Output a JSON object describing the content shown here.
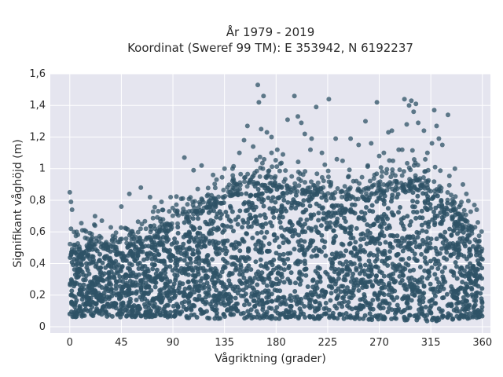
{
  "chart_data": {
    "type": "scatter",
    "title": "År 1979 - 2019",
    "subtitle": "Koordinat (Sweref 99 TM): E 353942, N 6192237",
    "xlabel": "Vågriktning (grader)",
    "ylabel": "Signifikant våghöjd (m)",
    "xlim": [
      -17,
      367
    ],
    "ylim": [
      -0.04,
      1.6
    ],
    "xticks": [
      0,
      45,
      90,
      135,
      180,
      225,
      270,
      315,
      360
    ],
    "xtick_labels": [
      "0",
      "45",
      "90",
      "135",
      "180",
      "225",
      "270",
      "315",
      "360"
    ],
    "yticks": [
      0,
      0.2,
      0.4,
      0.6,
      0.8,
      1.0,
      1.2,
      1.4,
      1.6
    ],
    "ytick_labels": [
      "0",
      "0,2",
      "0,4",
      "0,6",
      "0,8",
      "1",
      "1,2",
      "1,4",
      "1,6"
    ],
    "grid": true,
    "legend": "none",
    "colors": {
      "point": "#2e5266",
      "plot_bg": "#e5e5ef",
      "grid": "#ffffff"
    },
    "envelope": {
      "x": [
        0,
        20,
        45,
        70,
        90,
        110,
        135,
        160,
        180,
        200,
        225,
        250,
        270,
        290,
        300,
        315,
        330,
        345,
        360
      ],
      "lower": [
        0.06,
        0.06,
        0.06,
        0.06,
        0.06,
        0.05,
        0.05,
        0.05,
        0.05,
        0.05,
        0.05,
        0.05,
        0.04,
        0.04,
        0.04,
        0.03,
        0.04,
        0.05,
        0.06
      ],
      "dense_upper": [
        0.47,
        0.5,
        0.5,
        0.55,
        0.62,
        0.72,
        0.8,
        0.9,
        0.88,
        0.85,
        0.82,
        0.8,
        0.85,
        0.88,
        0.9,
        0.85,
        0.8,
        0.62,
        0.48
      ]
    },
    "outliers": [
      [
        0,
        0.85
      ],
      [
        1,
        0.79
      ],
      [
        2,
        0.74
      ],
      [
        1,
        0.62
      ],
      [
        6,
        0.6
      ],
      [
        11,
        0.61
      ],
      [
        22,
        0.64
      ],
      [
        45,
        0.76
      ],
      [
        52,
        0.84
      ],
      [
        62,
        0.88
      ],
      [
        70,
        0.82
      ],
      [
        80,
        0.79
      ],
      [
        88,
        0.82
      ],
      [
        100,
        1.07
      ],
      [
        115,
        1.02
      ],
      [
        125,
        0.96
      ],
      [
        135,
        1.0
      ],
      [
        148,
        1.1
      ],
      [
        152,
        1.18
      ],
      [
        155,
        1.27
      ],
      [
        160,
        1.14
      ],
      [
        164,
        1.53
      ],
      [
        165,
        1.42
      ],
      [
        167,
        1.25
      ],
      [
        169,
        1.46
      ],
      [
        172,
        1.23
      ],
      [
        176,
        1.2
      ],
      [
        181,
        1.12
      ],
      [
        186,
        1.09
      ],
      [
        190,
        1.31
      ],
      [
        196,
        1.46
      ],
      [
        199,
        1.33
      ],
      [
        202,
        1.29
      ],
      [
        205,
        1.22
      ],
      [
        211,
        1.19
      ],
      [
        215,
        1.39
      ],
      [
        220,
        1.1
      ],
      [
        226,
        1.44
      ],
      [
        232,
        1.19
      ],
      [
        238,
        1.05
      ],
      [
        245,
        1.19
      ],
      [
        252,
        1.15
      ],
      [
        258,
        1.3
      ],
      [
        263,
        1.16
      ],
      [
        268,
        1.42
      ],
      [
        270,
        1.08
      ],
      [
        274,
        1.1
      ],
      [
        278,
        1.23
      ],
      [
        281,
        1.24
      ],
      [
        287,
        1.12
      ],
      [
        290,
        1.12
      ],
      [
        292,
        1.44
      ],
      [
        294,
        1.28
      ],
      [
        296,
        1.4
      ],
      [
        298,
        1.43
      ],
      [
        300,
        1.36
      ],
      [
        302,
        1.41
      ],
      [
        304,
        1.29
      ],
      [
        309,
        1.24
      ],
      [
        312,
        1.1
      ],
      [
        316,
        1.16
      ],
      [
        318,
        1.37
      ],
      [
        320,
        1.27
      ],
      [
        322,
        1.19
      ],
      [
        325,
        1.15
      ],
      [
        330,
        1.34
      ],
      [
        336,
        1.0
      ],
      [
        343,
        0.9
      ],
      [
        346,
        0.84
      ],
      [
        353,
        0.77
      ],
      [
        355,
        0.74
      ],
      [
        356,
        0.66
      ],
      [
        108,
        0.99
      ],
      [
        128,
        0.93
      ],
      [
        142,
        1.0
      ],
      [
        176,
        1.1
      ],
      [
        210,
        1.12
      ],
      [
        233,
        1.06
      ],
      [
        260,
        1.02
      ],
      [
        282,
        1.05
      ]
    ]
  }
}
